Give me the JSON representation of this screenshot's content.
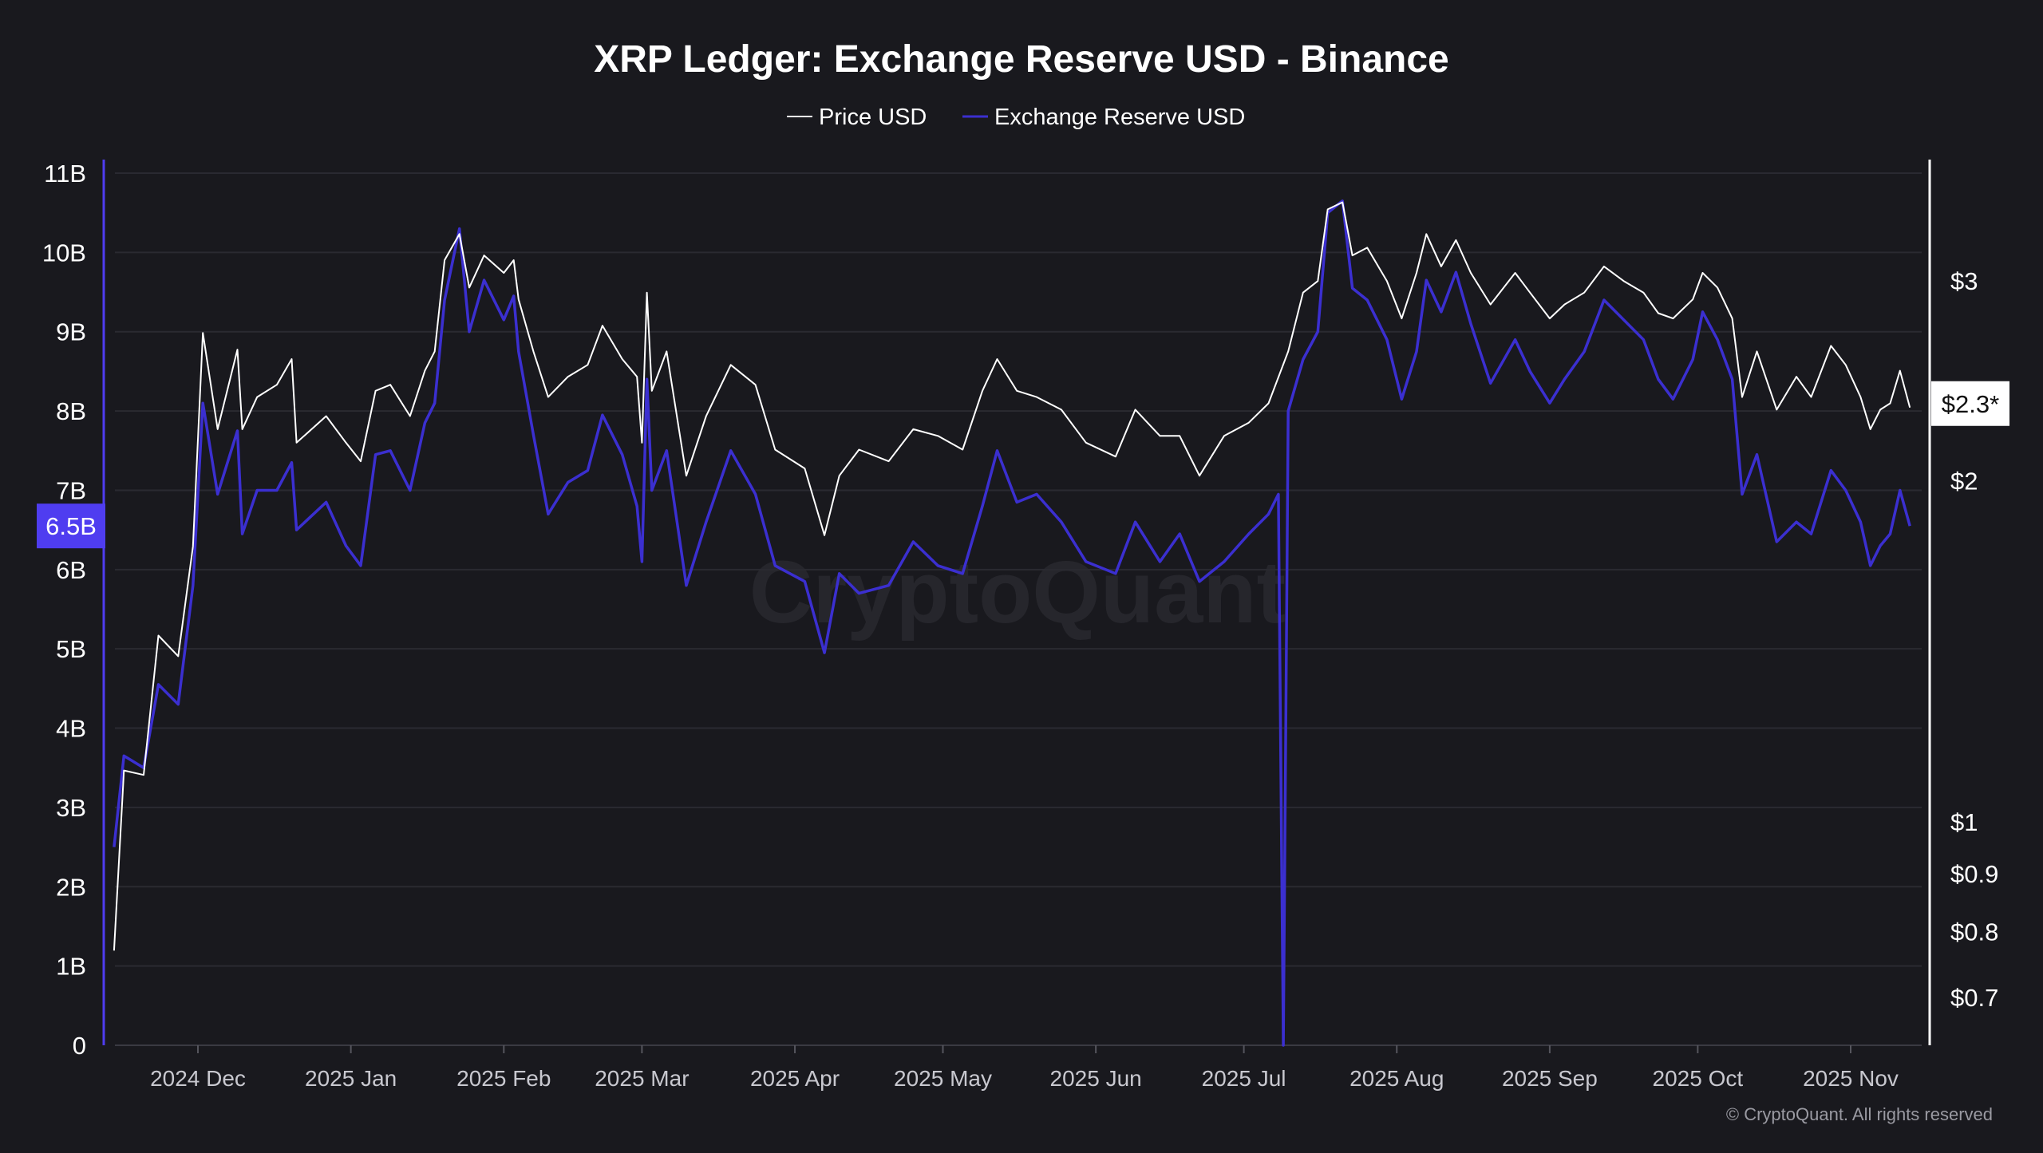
{
  "chart_data": {
    "type": "line",
    "title": "XRP Ledger: Exchange Reserve USD - Binance",
    "legend": {
      "placement": "top-center",
      "entries": [
        "Price USD",
        "Exchange Reserve USD"
      ]
    },
    "watermark": "CryptoQuant",
    "copyright": "© CryptoQuant. All rights reserved",
    "grid": true,
    "colors": {
      "background": "#19191e",
      "price": "#ffffff",
      "reserve": "#3b2fd0",
      "reserve_badge": "#4f3df0",
      "grid": "#2a2a31"
    },
    "x_axis": {
      "type": "date",
      "range": [
        "2024-11-14",
        "2025-11-13"
      ],
      "ticks": [
        {
          "date": "2024-12-01",
          "label": "2024 Dec"
        },
        {
          "date": "2025-01-01",
          "label": "2025 Jan"
        },
        {
          "date": "2025-02-01",
          "label": "2025 Feb"
        },
        {
          "date": "2025-03-01",
          "label": "2025 Mar"
        },
        {
          "date": "2025-04-01",
          "label": "2025 Apr"
        },
        {
          "date": "2025-05-01",
          "label": "2025 May"
        },
        {
          "date": "2025-06-01",
          "label": "2025 Jun"
        },
        {
          "date": "2025-07-01",
          "label": "2025 Jul"
        },
        {
          "date": "2025-08-01",
          "label": "2025 Aug"
        },
        {
          "date": "2025-09-01",
          "label": "2025 Sep"
        },
        {
          "date": "2025-10-01",
          "label": "2025 Oct"
        },
        {
          "date": "2025-11-01",
          "label": "2025 Nov"
        }
      ]
    },
    "y_left": {
      "unit": "USD (billions)",
      "range": [
        0,
        11
      ],
      "ticks": [
        {
          "v": 0,
          "label": "0"
        },
        {
          "v": 1,
          "label": "1B"
        },
        {
          "v": 2,
          "label": "2B"
        },
        {
          "v": 3,
          "label": "3B"
        },
        {
          "v": 4,
          "label": "4B"
        },
        {
          "v": 5,
          "label": "5B"
        },
        {
          "v": 6,
          "label": "6B"
        },
        {
          "v": 7,
          "label": "7B"
        },
        {
          "v": 8,
          "label": "8B"
        },
        {
          "v": 9,
          "label": "9B"
        },
        {
          "v": 10,
          "label": "10B"
        },
        {
          "v": 11,
          "label": "11B"
        }
      ],
      "current_label": "6.5B"
    },
    "y_right": {
      "scale": "log",
      "unit": "USD",
      "ticks": [
        {
          "v": 3,
          "label": "$3"
        },
        {
          "v": 2,
          "label": "$2"
        },
        {
          "v": 1,
          "label": "$1"
        },
        {
          "v": 0.9,
          "label": "$0.9"
        },
        {
          "v": 0.8,
          "label": "$0.8"
        },
        {
          "v": 0.7,
          "label": "$0.7"
        }
      ],
      "current_label": "$2.3*"
    },
    "series": [
      {
        "name": "Price USD",
        "axis": "right",
        "points": [
          [
            "2024-11-14",
            0.77
          ],
          [
            "2024-11-16",
            1.11
          ],
          [
            "2024-11-20",
            1.1
          ],
          [
            "2024-11-23",
            1.46
          ],
          [
            "2024-11-27",
            1.4
          ],
          [
            "2024-11-30",
            1.75
          ],
          [
            "2024-12-02",
            2.7
          ],
          [
            "2024-12-05",
            2.22
          ],
          [
            "2024-12-09",
            2.61
          ],
          [
            "2024-12-10",
            2.22
          ],
          [
            "2024-12-13",
            2.37
          ],
          [
            "2024-12-17",
            2.43
          ],
          [
            "2024-12-20",
            2.56
          ],
          [
            "2024-12-21",
            2.16
          ],
          [
            "2024-12-27",
            2.28
          ],
          [
            "2024-12-31",
            2.16
          ],
          [
            "2025-01-03",
            2.08
          ],
          [
            "2025-01-06",
            2.4
          ],
          [
            "2025-01-09",
            2.43
          ],
          [
            "2025-01-13",
            2.28
          ],
          [
            "2025-01-16",
            2.5
          ],
          [
            "2025-01-18",
            2.6
          ],
          [
            "2025-01-20",
            3.13
          ],
          [
            "2025-01-23",
            3.3
          ],
          [
            "2025-01-25",
            2.96
          ],
          [
            "2025-01-28",
            3.16
          ],
          [
            "2025-02-01",
            3.05
          ],
          [
            "2025-02-03",
            3.13
          ],
          [
            "2025-02-04",
            2.89
          ],
          [
            "2025-02-07",
            2.6
          ],
          [
            "2025-02-10",
            2.37
          ],
          [
            "2025-02-14",
            2.47
          ],
          [
            "2025-02-18",
            2.53
          ],
          [
            "2025-02-21",
            2.74
          ],
          [
            "2025-02-25",
            2.56
          ],
          [
            "2025-02-28",
            2.47
          ],
          [
            "2025-03-01",
            2.16
          ],
          [
            "2025-03-02",
            2.93
          ],
          [
            "2025-03-03",
            2.4
          ],
          [
            "2025-03-06",
            2.6
          ],
          [
            "2025-03-10",
            2.02
          ],
          [
            "2025-03-14",
            2.28
          ],
          [
            "2025-03-19",
            2.53
          ],
          [
            "2025-03-24",
            2.43
          ],
          [
            "2025-03-28",
            2.13
          ],
          [
            "2025-04-03",
            2.05
          ],
          [
            "2025-04-07",
            1.79
          ],
          [
            "2025-04-10",
            2.02
          ],
          [
            "2025-04-14",
            2.13
          ],
          [
            "2025-04-20",
            2.08
          ],
          [
            "2025-04-25",
            2.22
          ],
          [
            "2025-04-30",
            2.19
          ],
          [
            "2025-05-05",
            2.13
          ],
          [
            "2025-05-09",
            2.4
          ],
          [
            "2025-05-12",
            2.56
          ],
          [
            "2025-05-16",
            2.4
          ],
          [
            "2025-05-20",
            2.37
          ],
          [
            "2025-05-25",
            2.31
          ],
          [
            "2025-05-30",
            2.16
          ],
          [
            "2025-06-05",
            2.1
          ],
          [
            "2025-06-09",
            2.31
          ],
          [
            "2025-06-14",
            2.19
          ],
          [
            "2025-06-18",
            2.19
          ],
          [
            "2025-06-22",
            2.02
          ],
          [
            "2025-06-27",
            2.19
          ],
          [
            "2025-07-02",
            2.25
          ],
          [
            "2025-07-06",
            2.34
          ],
          [
            "2025-07-10",
            2.6
          ],
          [
            "2025-07-13",
            2.93
          ],
          [
            "2025-07-16",
            3.0
          ],
          [
            "2025-07-18",
            3.47
          ],
          [
            "2025-07-21",
            3.52
          ],
          [
            "2025-07-23",
            3.16
          ],
          [
            "2025-07-26",
            3.21
          ],
          [
            "2025-07-30",
            3.0
          ],
          [
            "2025-08-02",
            2.78
          ],
          [
            "2025-08-05",
            3.05
          ],
          [
            "2025-08-07",
            3.3
          ],
          [
            "2025-08-10",
            3.09
          ],
          [
            "2025-08-13",
            3.26
          ],
          [
            "2025-08-16",
            3.05
          ],
          [
            "2025-08-20",
            2.86
          ],
          [
            "2025-08-25",
            3.05
          ],
          [
            "2025-08-28",
            2.93
          ],
          [
            "2025-09-01",
            2.78
          ],
          [
            "2025-09-04",
            2.86
          ],
          [
            "2025-09-08",
            2.93
          ],
          [
            "2025-09-12",
            3.09
          ],
          [
            "2025-09-16",
            3.0
          ],
          [
            "2025-09-20",
            2.93
          ],
          [
            "2025-09-23",
            2.81
          ],
          [
            "2025-09-26",
            2.78
          ],
          [
            "2025-09-30",
            2.89
          ],
          [
            "2025-10-02",
            3.05
          ],
          [
            "2025-10-05",
            2.96
          ],
          [
            "2025-10-08",
            2.78
          ],
          [
            "2025-10-10",
            2.37
          ],
          [
            "2025-10-13",
            2.6
          ],
          [
            "2025-10-17",
            2.31
          ],
          [
            "2025-10-21",
            2.47
          ],
          [
            "2025-10-24",
            2.37
          ],
          [
            "2025-10-28",
            2.63
          ],
          [
            "2025-10-31",
            2.53
          ],
          [
            "2025-11-03",
            2.37
          ],
          [
            "2025-11-05",
            2.22
          ],
          [
            "2025-11-07",
            2.31
          ],
          [
            "2025-11-09",
            2.34
          ],
          [
            "2025-11-11",
            2.5
          ],
          [
            "2025-11-13",
            2.32
          ]
        ]
      },
      {
        "name": "Exchange Reserve USD",
        "axis": "left",
        "points": [
          [
            "2024-11-14",
            2.5
          ],
          [
            "2024-11-16",
            3.65
          ],
          [
            "2024-11-20",
            3.5
          ],
          [
            "2024-11-23",
            4.55
          ],
          [
            "2024-11-27",
            4.3
          ],
          [
            "2024-11-30",
            5.8
          ],
          [
            "2024-12-02",
            8.1
          ],
          [
            "2024-12-05",
            6.95
          ],
          [
            "2024-12-09",
            7.75
          ],
          [
            "2024-12-10",
            6.45
          ],
          [
            "2024-12-13",
            7.0
          ],
          [
            "2024-12-17",
            7.0
          ],
          [
            "2024-12-20",
            7.35
          ],
          [
            "2024-12-21",
            6.5
          ],
          [
            "2024-12-27",
            6.85
          ],
          [
            "2024-12-31",
            6.3
          ],
          [
            "2025-01-03",
            6.05
          ],
          [
            "2025-01-06",
            7.45
          ],
          [
            "2025-01-09",
            7.5
          ],
          [
            "2025-01-13",
            7.0
          ],
          [
            "2025-01-16",
            7.85
          ],
          [
            "2025-01-18",
            8.1
          ],
          [
            "2025-01-20",
            9.4
          ],
          [
            "2025-01-23",
            10.3
          ],
          [
            "2025-01-25",
            9.0
          ],
          [
            "2025-01-28",
            9.65
          ],
          [
            "2025-02-01",
            9.15
          ],
          [
            "2025-02-03",
            9.45
          ],
          [
            "2025-02-04",
            8.75
          ],
          [
            "2025-02-07",
            7.7
          ],
          [
            "2025-02-10",
            6.7
          ],
          [
            "2025-02-14",
            7.1
          ],
          [
            "2025-02-18",
            7.25
          ],
          [
            "2025-02-21",
            7.95
          ],
          [
            "2025-02-25",
            7.45
          ],
          [
            "2025-02-28",
            6.8
          ],
          [
            "2025-03-01",
            6.1
          ],
          [
            "2025-03-02",
            8.4
          ],
          [
            "2025-03-03",
            7.0
          ],
          [
            "2025-03-06",
            7.5
          ],
          [
            "2025-03-10",
            5.8
          ],
          [
            "2025-03-14",
            6.6
          ],
          [
            "2025-03-19",
            7.5
          ],
          [
            "2025-03-24",
            6.95
          ],
          [
            "2025-03-28",
            6.05
          ],
          [
            "2025-04-03",
            5.85
          ],
          [
            "2025-04-07",
            4.95
          ],
          [
            "2025-04-10",
            5.95
          ],
          [
            "2025-04-14",
            5.7
          ],
          [
            "2025-04-20",
            5.8
          ],
          [
            "2025-04-25",
            6.35
          ],
          [
            "2025-04-30",
            6.05
          ],
          [
            "2025-05-05",
            5.95
          ],
          [
            "2025-05-09",
            6.8
          ],
          [
            "2025-05-12",
            7.5
          ],
          [
            "2025-05-16",
            6.85
          ],
          [
            "2025-05-20",
            6.95
          ],
          [
            "2025-05-25",
            6.6
          ],
          [
            "2025-05-30",
            6.1
          ],
          [
            "2025-06-05",
            5.95
          ],
          [
            "2025-06-09",
            6.6
          ],
          [
            "2025-06-14",
            6.1
          ],
          [
            "2025-06-18",
            6.45
          ],
          [
            "2025-06-22",
            5.85
          ],
          [
            "2025-06-27",
            6.1
          ],
          [
            "2025-07-02",
            6.45
          ],
          [
            "2025-07-06",
            6.7
          ],
          [
            "2025-07-08",
            6.95
          ],
          [
            "2025-07-09",
            0
          ],
          [
            "2025-07-10",
            8.0
          ],
          [
            "2025-07-13",
            8.65
          ],
          [
            "2025-07-16",
            9.0
          ],
          [
            "2025-07-18",
            10.5
          ],
          [
            "2025-07-21",
            10.65
          ],
          [
            "2025-07-23",
            9.55
          ],
          [
            "2025-07-26",
            9.4
          ],
          [
            "2025-07-30",
            8.9
          ],
          [
            "2025-08-02",
            8.15
          ],
          [
            "2025-08-05",
            8.75
          ],
          [
            "2025-08-07",
            9.65
          ],
          [
            "2025-08-10",
            9.25
          ],
          [
            "2025-08-13",
            9.75
          ],
          [
            "2025-08-16",
            9.1
          ],
          [
            "2025-08-20",
            8.35
          ],
          [
            "2025-08-25",
            8.9
          ],
          [
            "2025-08-28",
            8.5
          ],
          [
            "2025-09-01",
            8.1
          ],
          [
            "2025-09-04",
            8.4
          ],
          [
            "2025-09-08",
            8.75
          ],
          [
            "2025-09-12",
            9.4
          ],
          [
            "2025-09-16",
            9.15
          ],
          [
            "2025-09-20",
            8.9
          ],
          [
            "2025-09-23",
            8.4
          ],
          [
            "2025-09-26",
            8.15
          ],
          [
            "2025-09-30",
            8.65
          ],
          [
            "2025-10-02",
            9.25
          ],
          [
            "2025-10-05",
            8.9
          ],
          [
            "2025-10-08",
            8.4
          ],
          [
            "2025-10-10",
            6.95
          ],
          [
            "2025-10-13",
            7.45
          ],
          [
            "2025-10-17",
            6.35
          ],
          [
            "2025-10-21",
            6.6
          ],
          [
            "2025-10-24",
            6.45
          ],
          [
            "2025-10-28",
            7.25
          ],
          [
            "2025-10-31",
            7.0
          ],
          [
            "2025-11-03",
            6.6
          ],
          [
            "2025-11-05",
            6.05
          ],
          [
            "2025-11-07",
            6.3
          ],
          [
            "2025-11-09",
            6.45
          ],
          [
            "2025-11-11",
            7.0
          ],
          [
            "2025-11-13",
            6.55
          ]
        ]
      }
    ]
  }
}
